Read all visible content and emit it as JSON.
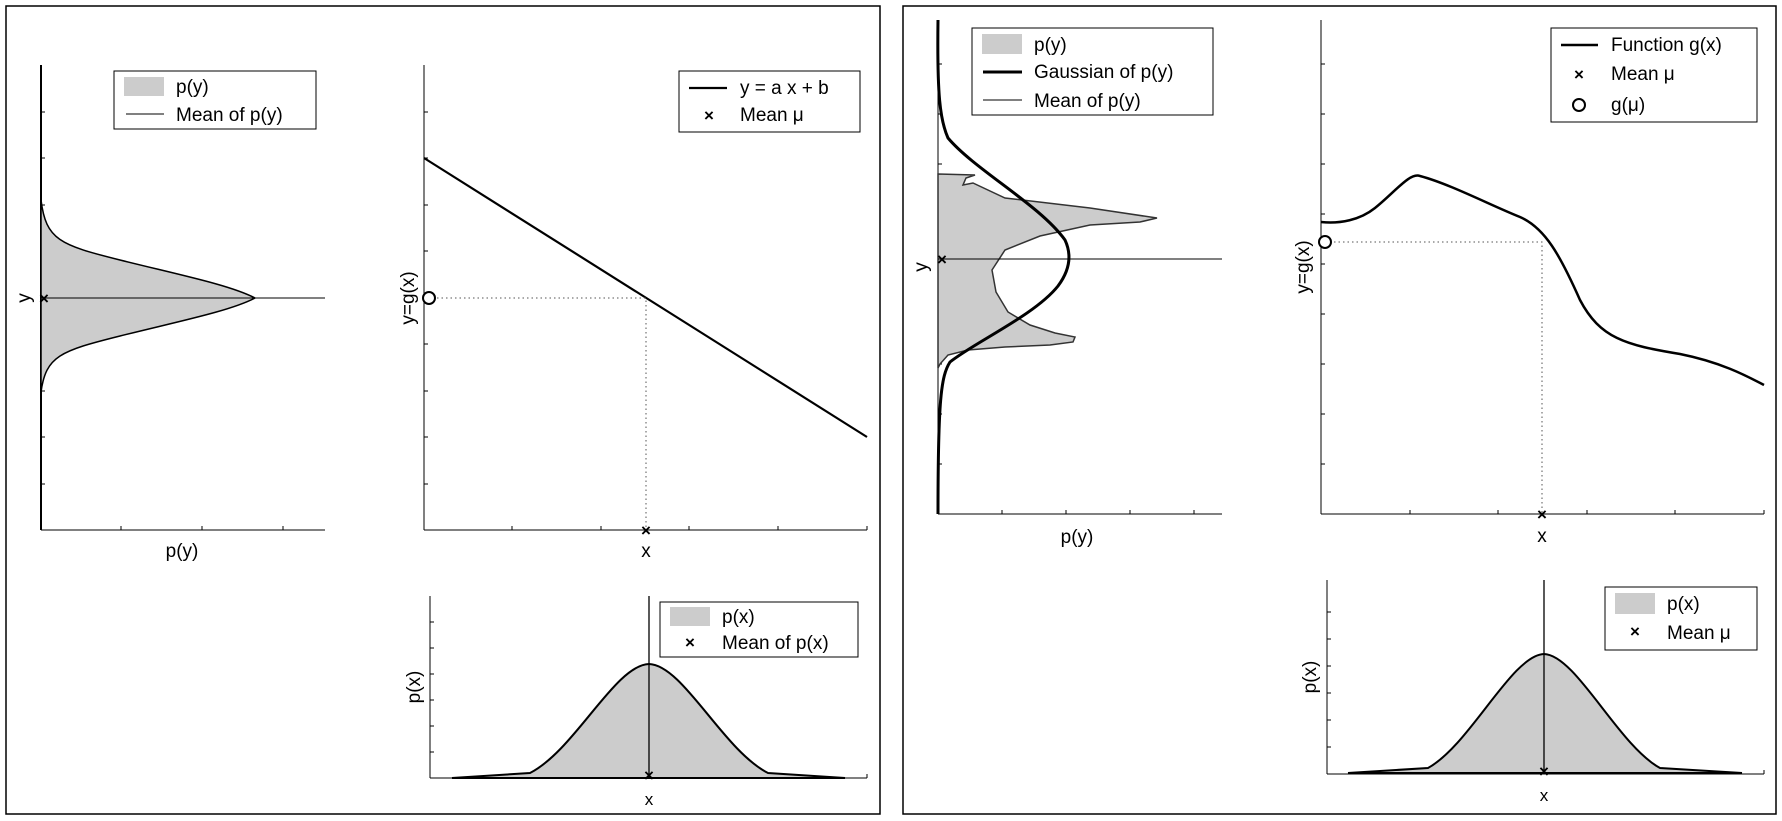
{
  "left_panel": {
    "py_plot": {
      "xlabel": "p(y)",
      "ylabel": "y",
      "legend": {
        "fill_label": "p(y)",
        "mean_label": "Mean of p(y)"
      }
    },
    "map_plot": {
      "xlabel": "x",
      "ylabel": "y=g(x)",
      "legend": {
        "line_label": "y = a x + b",
        "mean_label": "Mean μ"
      }
    },
    "px_plot": {
      "xlabel": "x",
      "ylabel": "p(x)",
      "legend": {
        "fill_label": "p(x)",
        "mean_label": "Mean of p(x)"
      }
    }
  },
  "right_panel": {
    "py_plot": {
      "xlabel": "p(y)",
      "ylabel": "y",
      "legend": {
        "fill_label": "p(y)",
        "gauss_label": "Gaussian of p(y)",
        "mean_label": "Mean of p(y)"
      }
    },
    "map_plot": {
      "xlabel": "x",
      "ylabel": "y=g(x)",
      "legend": {
        "line_label": "Function g(x)",
        "mean_label": "Mean μ",
        "gmu_label": "g(μ)"
      }
    },
    "px_plot": {
      "xlabel": "x",
      "ylabel": "p(x)",
      "legend": {
        "fill_label": "p(x)",
        "mean_label": "Mean μ"
      }
    }
  }
}
